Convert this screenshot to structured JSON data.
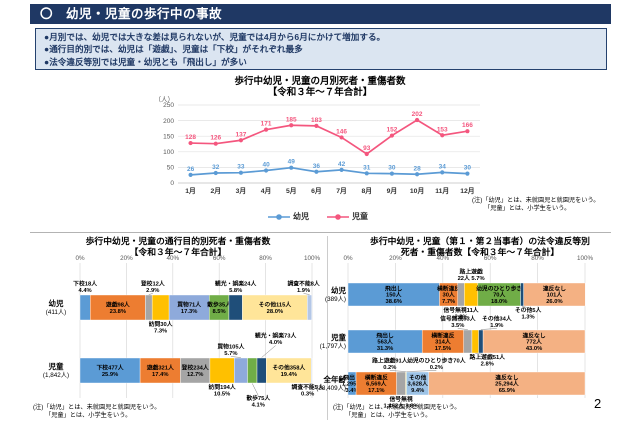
{
  "header": {
    "title": "〇　幼児・児童の歩行中の事故",
    "bg_color": "#1f3864"
  },
  "summary": {
    "bullets": [
      "●月別では、幼児では大きな差は見られないが、児童では4月から6月にかけて増加する。",
      "●通行目的別では、幼児は「遊戯」、児童は「下校」がそれぞれ最多",
      "●法令違反等別では児童・幼児とも「飛出し」が多い"
    ]
  },
  "notes": {
    "line1": "(注)「幼児」とは、未就園児と就園児をいう。",
    "line2": "「児童」とは、小学生をいう。"
  },
  "page_number": "2",
  "chart_data": [
    {
      "type": "line",
      "title": "歩行中幼児・児童の月別死者・重傷者数",
      "subtitle": "【令和３年～７年合計】",
      "unit": "（人）",
      "ylim": [
        0,
        250
      ],
      "y_ticks": [
        0,
        50,
        100,
        150,
        200,
        250
      ],
      "grid": true,
      "legend_position": "bottom",
      "categories": [
        "1月",
        "2月",
        "3月",
        "4月",
        "5月",
        "6月",
        "7月",
        "8月",
        "9月",
        "10月",
        "11月",
        "12月"
      ],
      "series": [
        {
          "name": "幼児",
          "color": "#5b9bd5",
          "values": [
            26,
            32,
            33,
            40,
            49,
            36,
            42,
            31,
            30,
            28,
            34,
            30
          ]
        },
        {
          "name": "児童",
          "color": "#f4567e",
          "values": [
            128,
            126,
            137,
            171,
            185,
            183,
            146,
            93,
            152,
            202,
            153,
            166
          ]
        }
      ]
    },
    {
      "type": "bar",
      "stacked": true,
      "orientation": "horizontal",
      "title": "歩行中幼児・児童の通行目的別死者・重傷者数",
      "subtitle": "【令和３年～７年合計】",
      "x_ticks": [
        "0%",
        "20%",
        "40%",
        "60%",
        "80%",
        "100%"
      ],
      "rows": [
        {
          "label": "幼児",
          "sublabel": "(411人)",
          "total": 411,
          "segments": [
            {
              "name": "下校",
              "people": 18,
              "pct": 4.4,
              "color": "#5b9bd5",
              "lines": [
                "下校18人",
                "4.4%"
              ],
              "pos": "above"
            },
            {
              "name": "遊戯",
              "people": 98,
              "pct": 23.8,
              "color": "#ed7d31",
              "lines": [
                "遊戯98人",
                "23.8%"
              ],
              "pos": "in"
            },
            {
              "name": "登校",
              "people": 12,
              "pct": 2.9,
              "color": "#a5a5a5",
              "lines": [
                "登校12人",
                "2.9%"
              ],
              "pos": "above",
              "dx": 4
            },
            {
              "name": "訪問",
              "people": 30,
              "pct": 7.3,
              "color": "#ffc000",
              "lines": [
                "訪問30人",
                "7.3%"
              ],
              "pos": "below"
            },
            {
              "name": "買物",
              "people": 71,
              "pct": 17.3,
              "color": "#8eaadb",
              "lines": [
                "買物71人",
                "17.3%"
              ],
              "pos": "in"
            },
            {
              "name": "散歩",
              "people": 35,
              "pct": 8.5,
              "color": "#70ad47",
              "lines": [
                "散歩35人",
                "8.5%"
              ],
              "pos": "in"
            },
            {
              "name": "観光・娯楽",
              "people": 24,
              "pct": 5.8,
              "color": "#1f4e79",
              "lines": [
                "観光・娯楽24人",
                "5.8%"
              ],
              "pos": "above"
            },
            {
              "name": "その他",
              "people": 115,
              "pct": 28.0,
              "color": "#ffe599",
              "lines": [
                "その他115人",
                "28.0%"
              ],
              "pos": "in"
            },
            {
              "name": "調査不能",
              "people": 8,
              "pct": 1.9,
              "color": "#b4c7e7",
              "lines": [
                "調査不能8人",
                "1.9%"
              ],
              "pos": "above",
              "dx": -6
            }
          ]
        },
        {
          "label": "児童",
          "sublabel": "(1,842人)",
          "total": 1842,
          "segments": [
            {
              "name": "下校",
              "people": 477,
              "pct": 25.9,
              "color": "#5b9bd5",
              "lines": [
                "下校477人",
                "25.9%"
              ],
              "pos": "in"
            },
            {
              "name": "遊戯",
              "people": 321,
              "pct": 17.4,
              "color": "#ed7d31",
              "lines": [
                "遊戯321人",
                "17.4%"
              ],
              "pos": "in"
            },
            {
              "name": "登校",
              "people": 234,
              "pct": 12.7,
              "color": "#a5a5a5",
              "lines": [
                "登校234人",
                "12.7%"
              ],
              "pos": "in"
            },
            {
              "name": "訪問",
              "people": 194,
              "pct": 10.5,
              "color": "#ffc000",
              "lines": [
                "訪問194人",
                "10.5%"
              ],
              "pos": "below"
            },
            {
              "name": "買物",
              "people": 105,
              "pct": 5.7,
              "color": "#8eaadb",
              "lines": [
                "買物105人",
                "5.7%"
              ],
              "pos": "above",
              "dx": -10
            },
            {
              "name": "散歩",
              "people": 75,
              "pct": 4.1,
              "color": "#70ad47",
              "lines": [
                "散歩75人",
                "4.1%"
              ],
              "pos": "below",
              "tier": 1,
              "dx": 6
            },
            {
              "name": "観光・娯楽",
              "people": 73,
              "pct": 4.0,
              "color": "#1f4e79",
              "lines": [
                "観光・娯楽73人",
                "4.0%"
              ],
              "pos": "above",
              "tier": 1,
              "dx": 14
            },
            {
              "name": "その他",
              "people": 358,
              "pct": 19.4,
              "color": "#ffe599",
              "lines": [
                "その他358人",
                "19.4%"
              ],
              "pos": "in"
            },
            {
              "name": "調査不能",
              "people": 5,
              "pct": 0.3,
              "color": "#b4c7e7",
              "lines": [
                "調査不能5人",
                "0.3%"
              ],
              "pos": "below",
              "dx": -4
            }
          ]
        }
      ]
    },
    {
      "type": "bar",
      "stacked": true,
      "orientation": "horizontal",
      "title": "歩行中幼児・児童（第１・第２当事者）の法令違反等別",
      "subtitle": "死者・重傷者数【令和３年～７年合計】",
      "x_ticks": [
        "0%",
        "20%",
        "40%",
        "60%",
        "80%",
        "100%"
      ],
      "rows": [
        {
          "label": "幼児",
          "sublabel": "(389人)",
          "total": 389,
          "segments": [
            {
              "name": "飛出し",
              "people": 150,
              "pct": 38.6,
              "color": "#5b9bd5",
              "lines": [
                "飛出し",
                "150人",
                "38.6%"
              ],
              "pos": "in"
            },
            {
              "name": "横断違反",
              "people": 30,
              "pct": 7.7,
              "color": "#ed7d31",
              "lines": [
                "横断違反",
                "30人",
                "7.7%"
              ],
              "pos": "in"
            },
            {
              "name": "信号無視",
              "people": 11,
              "pct": 2.8,
              "color": "#a5a5a5",
              "lines": [
                "信号無視11人",
                "2.8%"
              ],
              "pos": "below"
            },
            {
              "name": "路上遊戯",
              "people": 22,
              "pct": 5.7,
              "color": "#ffc000",
              "lines": [
                "路上遊戯",
                "22人 5.7%"
              ],
              "pos": "above"
            },
            {
              "name": "幼児のひとり歩き",
              "people": 70,
              "pct": 18.0,
              "color": "#70ad47",
              "lines": [
                "幼児のひとり歩き",
                "70人",
                "18.0%"
              ],
              "pos": "in"
            },
            {
              "name": "その他",
              "people": 5,
              "pct": 1.3,
              "color": "#1f4e79",
              "lines": [
                "その他5人",
                "1.3%"
              ],
              "pos": "below",
              "dx": 6
            },
            {
              "name": "違反なし",
              "people": 101,
              "pct": 26.0,
              "color": "#f4b183",
              "lines": [
                "違反なし",
                "101人",
                "26.0%"
              ],
              "pos": "in"
            }
          ]
        },
        {
          "label": "児童",
          "sublabel": "(1,797人)",
          "total": 1797,
          "segments": [
            {
              "name": "飛出し",
              "people": 563,
              "pct": 31.3,
              "color": "#5b9bd5",
              "lines": [
                "飛出し",
                "563人",
                "31.3%"
              ],
              "pos": "in"
            },
            {
              "name": "横断違反",
              "people": 314,
              "pct": 17.5,
              "color": "#ed7d31",
              "lines": [
                "横断違反",
                "314人",
                "17.5%"
              ],
              "pos": "in"
            },
            {
              "name": "信号無視",
              "people": 63,
              "pct": 3.5,
              "color": "#a5a5a5",
              "lines": [
                "信号無視63人",
                "3.5%"
              ],
              "pos": "above",
              "dx": -10
            },
            {
              "name": "路上遊戯",
              "people": 51,
              "pct": 2.8,
              "color": "#ffc000",
              "lines": [
                "路上遊戯51人",
                "2.8%"
              ],
              "pos": "below",
              "dx": 12
            },
            {
              "name": "その他",
              "people": 34,
              "pct": 1.9,
              "color": "#1f4e79",
              "lines": [
                "その他34人",
                "1.9%"
              ],
              "pos": "above",
              "dx": 16
            },
            {
              "name": "違反なし",
              "people": 772,
              "pct": 43.0,
              "color": "#f4b183",
              "lines": [
                "違反なし",
                "772人",
                "43.0%"
              ],
              "pos": "in"
            }
          ]
        },
        {
          "label": "全年齢",
          "sublabel": "(38,409人)",
          "total": 38409,
          "segments": [
            {
              "name": "飛出し",
              "people": 1295,
              "pct": 3.4,
              "color": "#5b9bd5",
              "lines": [
                "飛出し",
                "1,295人",
                "3.4%"
              ],
              "pos": "in"
            },
            {
              "name": "横断違反",
              "people": 6569,
              "pct": 17.1,
              "color": "#ed7d31",
              "lines": [
                "横断違反",
                "6,569人",
                "17.1%"
              ],
              "pos": "in"
            },
            {
              "name": "信号無視",
              "people": 1462,
              "pct": 3.8,
              "color": "#a5a5a5",
              "lines": [
                "信号無視",
                "1,462人 3.8%"
              ],
              "pos": "below"
            },
            {
              "name": "路上遊戯",
              "people": 91,
              "pct": 0.2,
              "color": "#ffc000",
              "lines": [
                "路上遊戯91人",
                "0.2%"
              ],
              "pos": "above",
              "dx": -16
            },
            {
              "name": "幼児のひとり歩き",
              "people": 70,
              "pct": 0.2,
              "color": "#70ad47",
              "lines": [
                "幼児のひとり歩き70人",
                "0.2%"
              ],
              "pos": "above",
              "dx": 30
            },
            {
              "name": "その他",
              "people": 3628,
              "pct": 9.4,
              "color": "#9dc3e6",
              "lines": [
                "その他",
                "3,628人",
                "9.4%"
              ],
              "pos": "in"
            },
            {
              "name": "違反なし",
              "people": 25294,
              "pct": 65.9,
              "color": "#f4b183",
              "lines": [
                "違反なし",
                "25,294人",
                "65.9%"
              ],
              "pos": "in"
            }
          ]
        }
      ]
    }
  ]
}
